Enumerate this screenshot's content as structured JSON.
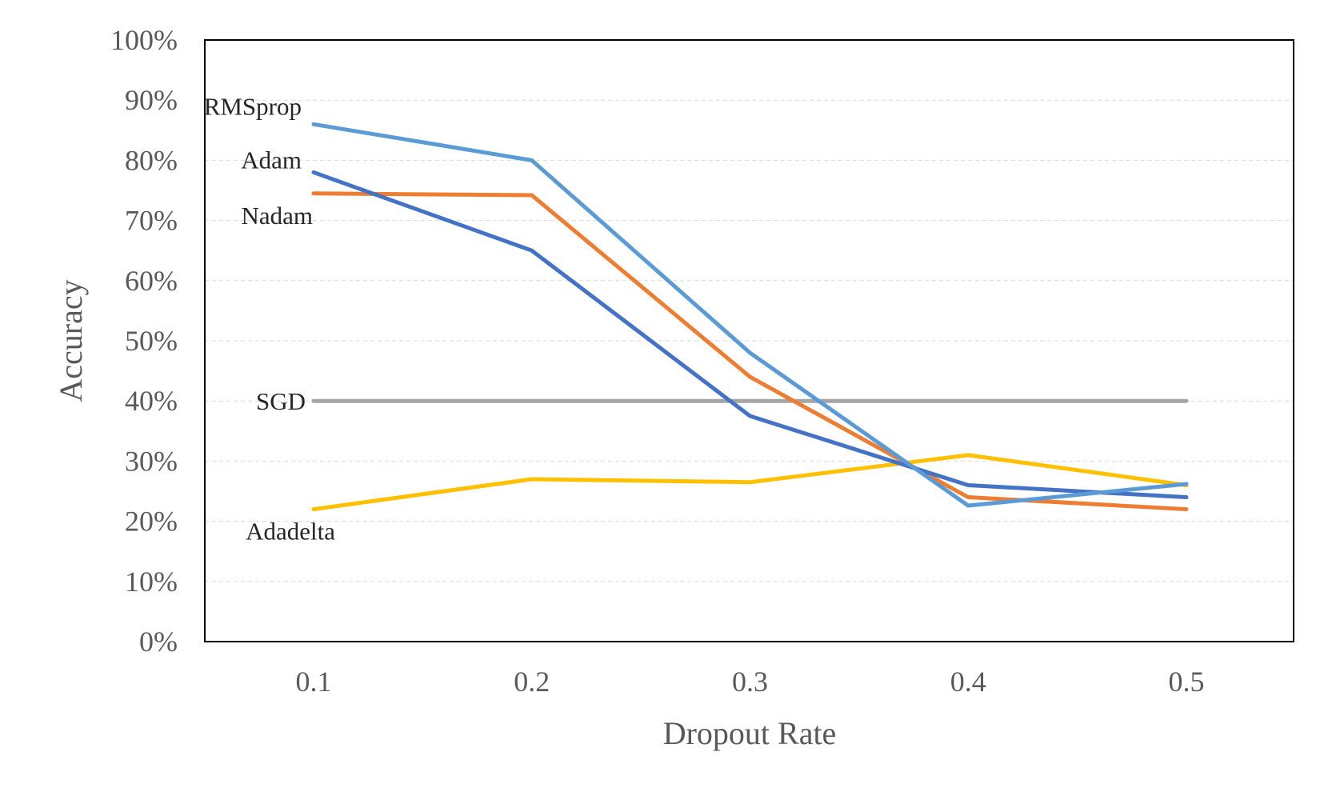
{
  "chart_data": {
    "type": "line",
    "xlabel": "Dropout Rate",
    "ylabel": "Accuracy",
    "categories": [
      "0.1",
      "0.2",
      "0.3",
      "0.4",
      "0.5"
    ],
    "y_tick_labels": [
      "0%",
      "10%",
      "20%",
      "30%",
      "40%",
      "50%",
      "60%",
      "70%",
      "80%",
      "90%",
      "100%"
    ],
    "ylim": [
      0,
      100
    ],
    "grid": true,
    "series": [
      {
        "name": "Adadelta",
        "color": "#FFC000",
        "values": [
          22,
          27,
          26.5,
          31,
          26
        ]
      },
      {
        "name": "SGD",
        "color": "#A5A5A5",
        "values": [
          40,
          40,
          40,
          40,
          40
        ]
      },
      {
        "name": "Nadam",
        "color": "#ED7D31",
        "values": [
          74.5,
          74.2,
          44,
          24,
          22
        ]
      },
      {
        "name": "Adam",
        "color": "#4472C4",
        "values": [
          78,
          65,
          37.5,
          26,
          24
        ]
      },
      {
        "name": "RMSprop",
        "color": "#5B9BD5",
        "values": [
          86,
          80,
          48,
          22.6,
          26.2
        ]
      }
    ]
  }
}
